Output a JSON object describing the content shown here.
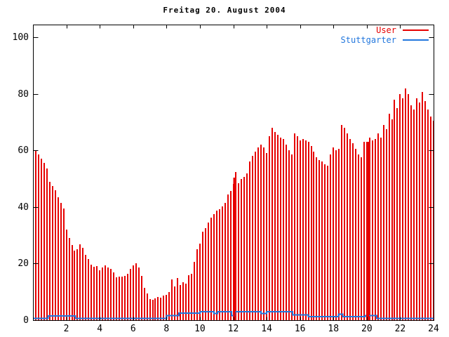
{
  "canvas": {
    "background": "#ffffff",
    "axis_color": "#000000",
    "text_color": "#000000"
  },
  "chart_data": {
    "type": "bar",
    "title": "Freitag 20. August 2004",
    "xlabel": "",
    "ylabel": "",
    "xlim": [
      0,
      24
    ],
    "ylim": [
      0,
      104.5
    ],
    "xticks": [
      2,
      4,
      6,
      8,
      10,
      12,
      14,
      16,
      18,
      20,
      22,
      24
    ],
    "yticks": [
      0,
      20,
      40,
      60,
      80,
      100
    ],
    "grid": false,
    "legend_position": "top-right-inside",
    "series": [
      {
        "name": "User",
        "color": "#e60000",
        "style": "impulses",
        "interval_minutes": 10,
        "start_hour": 0,
        "values": [
          58,
          60,
          58.5,
          57,
          55.5,
          53.5,
          49,
          47.5,
          46,
          43.5,
          41.5,
          39.5,
          32,
          29,
          26.5,
          24.5,
          25,
          26.7,
          25.5,
          23,
          21.5,
          19.5,
          18.8,
          19,
          17.6,
          18.5,
          19.3,
          18.5,
          18,
          17,
          15.1,
          15.5,
          15.4,
          15.7,
          16.5,
          18,
          19.3,
          20,
          18.5,
          15.6,
          11.4,
          9.5,
          7.4,
          7.2,
          7.8,
          8.2,
          8,
          8.6,
          9,
          10,
          14.4,
          12,
          15,
          12.5,
          13.4,
          13,
          15.9,
          16.5,
          20.5,
          25,
          27.1,
          31.2,
          32.4,
          34.5,
          36.2,
          37.4,
          38.6,
          39.1,
          40.3,
          41.5,
          44.4,
          45.6,
          48.1,
          52.3,
          48.5,
          49.8,
          50.6,
          52,
          56,
          58,
          59.5,
          61,
          62,
          61,
          59,
          65,
          68,
          66.5,
          65.5,
          64.5,
          64,
          62,
          60,
          58.5,
          66,
          65,
          63.5,
          64,
          63.5,
          63,
          61.5,
          59.5,
          57.5,
          56.5,
          56,
          55,
          54.5,
          58.5,
          61,
          60,
          60.5,
          69,
          68,
          66,
          64,
          62.5,
          60.5,
          58.5,
          57.5,
          63,
          63,
          64.5,
          63.5,
          64,
          66,
          64.5,
          69,
          67.5,
          73,
          71,
          78,
          75,
          80,
          78.5,
          82,
          80,
          76,
          74.5,
          78.5,
          77,
          80.7,
          77.5,
          74.5,
          72,
          70.5
        ],
        "highlight_bars": [
          {
            "t": 12.05,
            "value": 50.5,
            "width": 3
          },
          {
            "t": 20.05,
            "value": 63,
            "width": 4
          }
        ]
      },
      {
        "name": "Stuttgarter",
        "color": "#2277dd",
        "style": "steps",
        "points": [
          [
            0,
            0.6
          ],
          [
            0.9,
            1.5
          ],
          [
            2.55,
            0.6
          ],
          [
            8.0,
            1.6
          ],
          [
            8.75,
            2.5
          ],
          [
            10.0,
            3.0
          ],
          [
            10.85,
            2.4
          ],
          [
            11.05,
            3.0
          ],
          [
            11.9,
            1.6
          ],
          [
            12.1,
            3.0
          ],
          [
            13.65,
            2.4
          ],
          [
            14.0,
            3.0
          ],
          [
            15.55,
            1.9
          ],
          [
            16.5,
            1.2
          ],
          [
            18.3,
            2.1
          ],
          [
            18.55,
            1.3
          ],
          [
            19.9,
            1.6
          ],
          [
            20.6,
            0.6
          ],
          [
            24,
            0.6
          ]
        ]
      }
    ]
  }
}
